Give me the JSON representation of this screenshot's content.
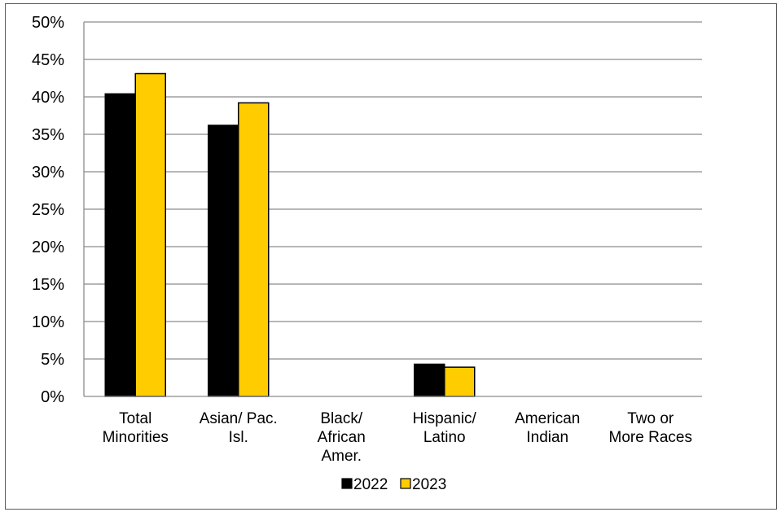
{
  "chart_data": {
    "type": "bar",
    "categories": [
      [
        "Total",
        "Minorities"
      ],
      [
        "Asian/ Pac.",
        "Isl."
      ],
      [
        "Black/",
        "African",
        "Amer."
      ],
      [
        "Hispanic/",
        "Latino"
      ],
      [
        "American",
        "Indian"
      ],
      [
        "Two or",
        "More Races"
      ]
    ],
    "series": [
      {
        "name": "2022",
        "color": "#000000",
        "values": [
          40.4,
          36.2,
          0,
          4.3,
          0,
          0
        ]
      },
      {
        "name": "2023",
        "color": "#FFCC00",
        "values": [
          43.1,
          39.2,
          0,
          3.9,
          0,
          0
        ]
      }
    ],
    "yticks": [
      "0%",
      "5%",
      "10%",
      "15%",
      "20%",
      "25%",
      "30%",
      "35%",
      "40%",
      "45%",
      "50%"
    ],
    "ylim": [
      0,
      50
    ],
    "grid": true,
    "legend_position": "bottom"
  }
}
